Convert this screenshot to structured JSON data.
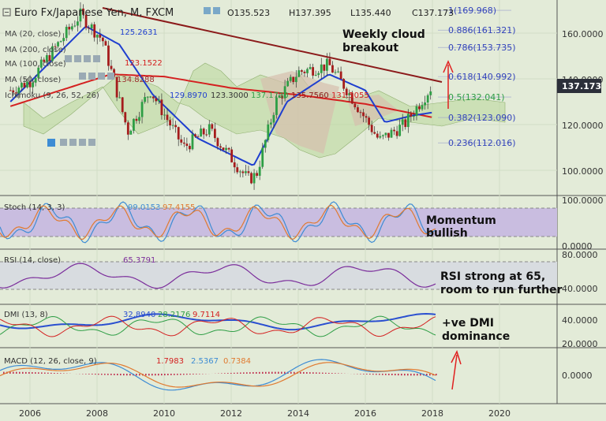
{
  "header": {
    "symbol": "Euro Fx/Japanese Yen, M, FXCM",
    "ohlc": [
      "O135.523",
      "H137.395",
      "L135.440",
      "C137.173"
    ]
  },
  "indicator_labels": [
    {
      "text": "MA (20, close)",
      "value": "125.2631",
      "color": "#1f3fcf"
    },
    {
      "text": "MA (200, close)",
      "value": "",
      "color": "#2a5bd0"
    },
    {
      "text": "MA (100, close)",
      "value": "123.1522",
      "color": "#d42020"
    },
    {
      "text": "MA (50, close)",
      "value": "134.8288",
      "color": "#9a2b2b"
    },
    {
      "text": "Ichimoku (9, 26, 52, 26)",
      "value": "",
      "color": "#333333"
    }
  ],
  "ichimoku_values": [
    "129.8970",
    "123.3000",
    "137.1730",
    "135.7560",
    "131.5055"
  ],
  "annotations": {
    "weekly": [
      "Weekly cloud",
      "breakout"
    ],
    "momentum": [
      "Momentum",
      "bullish"
    ],
    "rsi": [
      "RSI strong at 65,",
      "room to run further"
    ],
    "dmi": [
      "+ve DMI",
      "dominance"
    ]
  },
  "price_axis": {
    "ticks": [
      "160.0000",
      "140.0000",
      "120.0000",
      "100.0000"
    ],
    "last_price": "137.173"
  },
  "fib_levels": [
    {
      "label": "1(169.968)",
      "value": 169.968
    },
    {
      "label": "0.886(161.321)",
      "value": 161.321
    },
    {
      "label": "0.786(153.735)",
      "value": 153.735
    },
    {
      "label": "0.618(140.992)",
      "value": 140.992
    },
    {
      "label": "0.5(132.041)",
      "value": 132.041
    },
    {
      "label": "0.382(123.090)",
      "value": 123.09
    },
    {
      "label": "0.236(112.016)",
      "value": 112.016
    }
  ],
  "x_axis": [
    "2006",
    "2008",
    "2010",
    "2012",
    "2014",
    "2016",
    "2018",
    "2020"
  ],
  "panels": {
    "stoch": {
      "label": "Stoch (14, 3, 3)",
      "k": "99.0153",
      "d": "97.4155",
      "ticks": [
        "100.0000",
        "0.0000"
      ]
    },
    "rsi": {
      "label": "RSI (14, close)",
      "value": "65.3791",
      "ticks": [
        "80.0000",
        "40.0000"
      ]
    },
    "dmi": {
      "label": "DMI (13, 8)",
      "v1": "32.8940",
      "v2": "28.2176",
      "v3": "9.7114",
      "ticks": [
        "40.0000",
        "20.0000"
      ]
    },
    "macd": {
      "label": "MACD (12, 26, close, 9)",
      "v1": "1.7983",
      "v2": "2.5367",
      "v3": "0.7384",
      "ticks": [
        "0.0000"
      ]
    }
  },
  "colors": {
    "background": "#e3ebd8",
    "candle_up": "#2e9e45",
    "candle_down": "#a51c1c",
    "ma20": "#1f3fcf",
    "ma100": "#d42020",
    "trendline": "#8b1a1a",
    "cloud": "#bcd9a0",
    "fib": "#3344bb",
    "oscillator_band": "#c9bde0",
    "purple_line": "#7b2d9b"
  },
  "chart_data": {
    "type": "candlestick",
    "title": "Euro Fx/Japanese Yen, M, FXCM",
    "x_ticks": [
      "2006",
      "2008",
      "2010",
      "2012",
      "2014",
      "2016",
      "2018",
      "2020"
    ],
    "price_path": [
      [
        "2005-06",
        135
      ],
      [
        "2006-01",
        139
      ],
      [
        "2007-07",
        168
      ],
      [
        "2008-03",
        157
      ],
      [
        "2008-12",
        117
      ],
      [
        "2009-08",
        135
      ],
      [
        "2010-08",
        110
      ],
      [
        "2011-05",
        118
      ],
      [
        "2012-07",
        96
      ],
      [
        "2012-10",
        98
      ],
      [
        "2013-05",
        130
      ],
      [
        "2014-01",
        143
      ],
      [
        "2014-12",
        146
      ],
      [
        "2015-06",
        136
      ],
      [
        "2016-06",
        113
      ],
      [
        "2017-03",
        120
      ],
      [
        "2018-01",
        137.173
      ]
    ],
    "ma20_path": [
      [
        "2005-06",
        130
      ],
      [
        "2007-09",
        163
      ],
      [
        "2008-09",
        155
      ],
      [
        "2009-09",
        133
      ],
      [
        "2011-01",
        114
      ],
      [
        "2012-09",
        102
      ],
      [
        "2013-09",
        130
      ],
      [
        "2014-12",
        142
      ],
      [
        "2016-01",
        135
      ],
      [
        "2016-08",
        121
      ],
      [
        "2017-06",
        124
      ],
      [
        "2018-01",
        125.2631
      ]
    ],
    "ma100_path": [
      [
        "2005-06",
        128
      ],
      [
        "2008-06",
        142
      ],
      [
        "2010-01",
        141
      ],
      [
        "2012-01",
        136
      ],
      [
        "2014-01",
        133
      ],
      [
        "2016-01",
        129
      ],
      [
        "2018-01",
        123.1522
      ]
    ],
    "trendline": [
      [
        "2007-07",
        169.968
      ],
      [
        "2018-01",
        140.992
      ]
    ],
    "fib_levels": [
      169.968,
      161.321,
      153.735,
      140.992,
      132.041,
      123.09,
      112.016
    ],
    "last_price": 137.173,
    "y_ticks": [
      160,
      140,
      120,
      100
    ]
  }
}
